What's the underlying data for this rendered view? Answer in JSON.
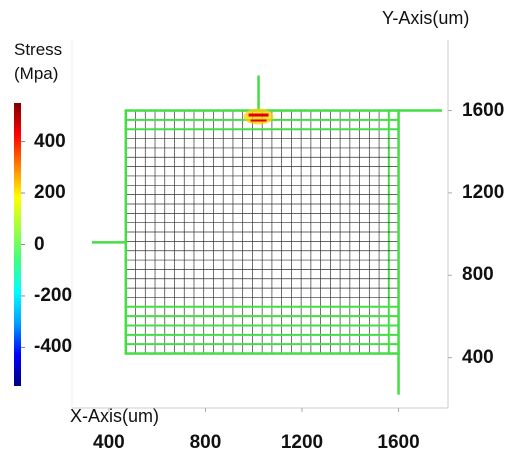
{
  "chart_data": {
    "type": "heatmap",
    "description_kind": "stress distribution over mesh",
    "colorbar": {
      "title_line1": "Stress",
      "title_line2": "(Mpa)",
      "range": [
        -550,
        550
      ],
      "ticks": [
        "400",
        "200",
        "0",
        "-200",
        "-400"
      ],
      "tick_values": [
        400,
        200,
        0,
        -200,
        -400
      ],
      "colors": [
        "#00007f",
        "#0000ff",
        "#00a0ff",
        "#00ffff",
        "#40ff80",
        "#9fff40",
        "#ffff00",
        "#ff8000",
        "#ff0000",
        "#7f0000"
      ]
    },
    "xlabel": "X-Axis(um)",
    "ylabel": "Y-Axis(um)",
    "x_ticks": [
      "400",
      "800",
      "1200",
      "1600"
    ],
    "x_tick_values": [
      400,
      800,
      1200,
      1600
    ],
    "y_ticks": [
      "1600",
      "1200",
      "800",
      "400"
    ],
    "y_tick_values": [
      1600,
      1200,
      800,
      400
    ],
    "xlim": [
      330,
      1780
    ],
    "ylim": [
      170,
      1860
    ],
    "mesh": {
      "x_range": [
        470,
        1600
      ],
      "y_range": [
        420,
        1600
      ],
      "columns": 28,
      "rows": 26,
      "cell_color": "#333333",
      "edge_color": "#44dd44",
      "top_band_rows": 2,
      "bottom_band_rows": 5,
      "right_band_columns": 1
    },
    "leads": [
      {
        "name": "top",
        "x": [
          1020,
          1020
        ],
        "y": [
          1600,
          1770
        ]
      },
      {
        "name": "right",
        "x": [
          1600,
          1780
        ],
        "y": [
          1600,
          1600
        ]
      },
      {
        "name": "left",
        "x": [
          330,
          470
        ],
        "y": [
          960,
          960
        ]
      },
      {
        "name": "bottom",
        "x": [
          1600,
          1600
        ],
        "y": [
          420,
          220
        ]
      }
    ],
    "hotspots": [
      {
        "x": 1020,
        "y": 1600,
        "value": 520
      }
    ],
    "colors": {
      "grid": "#333333",
      "edge": "#44dd44",
      "frame": "#cccccc",
      "hot": "#e00000",
      "warm": "#ffd200"
    }
  }
}
